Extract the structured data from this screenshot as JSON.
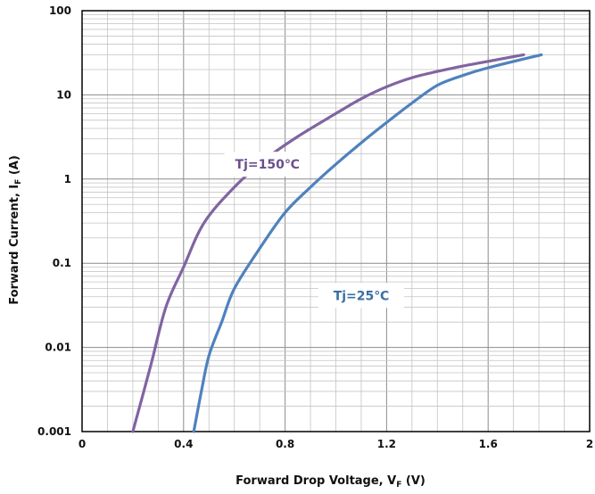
{
  "chart_data": {
    "type": "line",
    "title": "",
    "xlabel_main": "Forward Drop Voltage, V",
    "xlabel_sub": "F",
    "xlabel_tail": " (V)",
    "ylabel_main": "Forward Current, I",
    "ylabel_sub": "F",
    "ylabel_tail": " (A)",
    "x_scale": "linear",
    "y_scale": "log",
    "xlim": [
      0,
      2
    ],
    "ylim": [
      0.001,
      100
    ],
    "x_ticks": [
      0,
      0.4,
      0.8,
      1.2,
      1.6,
      2
    ],
    "x_tick_labels": [
      "0",
      "0.4",
      "0.8",
      "1.2",
      "1.6",
      "2"
    ],
    "y_ticks": [
      0.001,
      0.01,
      0.1,
      1,
      10,
      100
    ],
    "y_tick_labels": [
      "0.001",
      "0.01",
      "0.1",
      "1",
      "10",
      "100"
    ],
    "grid": true,
    "series": [
      {
        "name": "Tj=150℃",
        "color": "#8064a2",
        "x": [
          0.2,
          0.27,
          0.33,
          0.4,
          0.48,
          0.6,
          0.72,
          0.85,
          1.0,
          1.1,
          1.2,
          1.3,
          1.4,
          1.5,
          1.6,
          1.74
        ],
        "y": [
          0.001,
          0.006,
          0.03,
          0.09,
          0.3,
          0.8,
          1.7,
          3.2,
          6.0,
          9.0,
          12.5,
          16.0,
          19.0,
          22.0,
          25.0,
          30.0
        ]
      },
      {
        "name": "Tj=25℃",
        "color": "#4f81bd",
        "x": [
          0.44,
          0.47,
          0.5,
          0.55,
          0.6,
          0.7,
          0.8,
          0.9,
          1.0,
          1.1,
          1.2,
          1.3,
          1.4,
          1.5,
          1.6,
          1.81
        ],
        "y": [
          0.001,
          0.003,
          0.008,
          0.02,
          0.05,
          0.15,
          0.4,
          0.8,
          1.5,
          2.7,
          4.7,
          8.0,
          13.0,
          17.0,
          21.0,
          30.0
        ]
      }
    ]
  }
}
